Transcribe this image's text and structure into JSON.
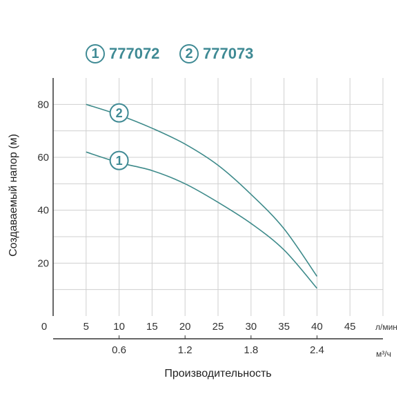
{
  "colors": {
    "curve": "#3d8a8a",
    "badge": "#3f8a94",
    "grid": "#cfcfcf",
    "axis": "#333333"
  },
  "legend": [
    {
      "num": "1",
      "label": "777072"
    },
    {
      "num": "2",
      "label": "777073"
    }
  ],
  "chart_data": {
    "type": "line",
    "title": "",
    "ylabel": "Создаваемый напор (м)",
    "xlabel": "Производительность",
    "x_unit": "л/мин",
    "x2_unit": "м³/ч",
    "xlim": [
      0,
      50
    ],
    "ylim": [
      0,
      90
    ],
    "x_ticks": [
      "0",
      "5",
      "10",
      "15",
      "20",
      "25",
      "30",
      "35",
      "40",
      "45"
    ],
    "y_ticks": [
      "20",
      "40",
      "60",
      "80"
    ],
    "x2_ticks": [
      {
        "x": 10,
        "label": "0.6"
      },
      {
        "x": 20,
        "label": "1.2"
      },
      {
        "x": 30,
        "label": "1.8"
      },
      {
        "x": 40,
        "label": "2.4"
      }
    ],
    "grid": true,
    "series": [
      {
        "name": "1",
        "x": [
          5,
          10,
          15,
          20,
          25,
          30,
          35,
          40
        ],
        "y": [
          62,
          58,
          55,
          50,
          43,
          35,
          25,
          10.5
        ]
      },
      {
        "name": "2",
        "x": [
          5,
          10,
          15,
          20,
          25,
          30,
          35,
          40
        ],
        "y": [
          80,
          76,
          71,
          65,
          57,
          46,
          33,
          15
        ]
      }
    ]
  }
}
